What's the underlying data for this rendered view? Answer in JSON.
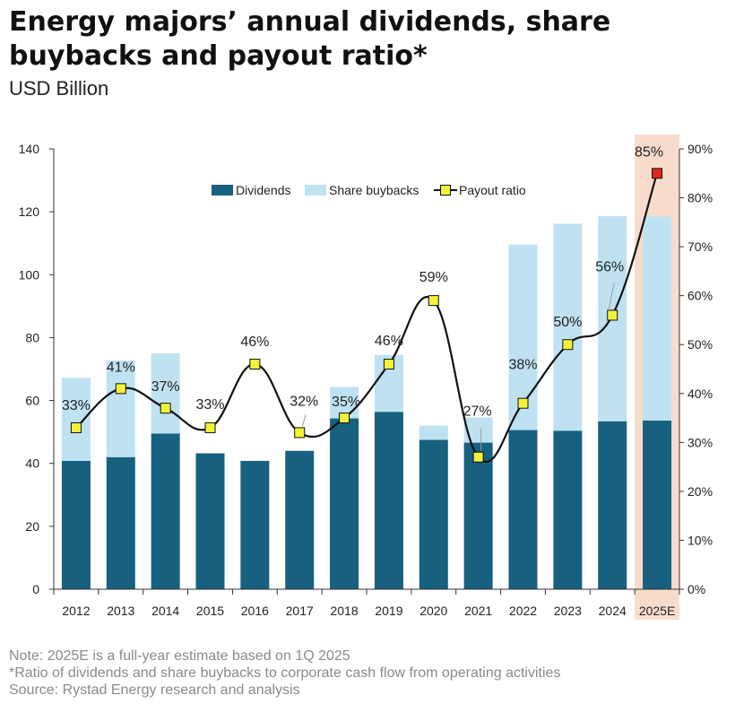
{
  "header": {
    "title": "Energy majors’ annual dividends, share buybacks and payout ratio*",
    "subtitle": "USD Billion"
  },
  "notes": [
    "Note: 2025E is a full-year estimate based on 1Q 2025",
    "*Ratio of dividends and share buybacks to corporate cash flow from operating activities",
    "Source: Rystad Energy research and analysis"
  ],
  "colors": {
    "dividends": "#17607f",
    "buybacks": "#bfe2f2",
    "line": "#111111",
    "marker": "#f2f23a",
    "marker_highlight": "#e0261c",
    "highlight_band": "#f8dccb"
  },
  "chart_data": {
    "type": "bar",
    "stacked": true,
    "categories": [
      "2012",
      "2013",
      "2014",
      "2015",
      "2016",
      "2017",
      "2018",
      "2019",
      "2020",
      "2021",
      "2022",
      "2023",
      "2024",
      "2025E"
    ],
    "series": [
      {
        "name": "Dividends",
        "axis": "left",
        "values": [
          40.8,
          42.0,
          49.5,
          43.2,
          40.8,
          44.0,
          54.3,
          56.4,
          47.5,
          46.6,
          50.6,
          50.4,
          53.4,
          53.6
        ]
      },
      {
        "name": "Share buybacks",
        "axis": "left",
        "values": [
          26.4,
          30.7,
          25.5,
          0,
          0,
          0,
          10.0,
          18.1,
          4.5,
          8.0,
          59.0,
          65.8,
          65.2,
          64.9
        ]
      },
      {
        "name": "Payout ratio",
        "type": "line",
        "axis": "right",
        "values": [
          33,
          41,
          37,
          33,
          46,
          32,
          35,
          46,
          59,
          27,
          38,
          50,
          56,
          85
        ],
        "labels": [
          "33%",
          "41%",
          "37%",
          "33%",
          "46%",
          "32%",
          "35%",
          "46%",
          "59%",
          "27%",
          "38%",
          "50%",
          "56%",
          "85%"
        ]
      }
    ],
    "ylim": [
      0,
      140
    ],
    "yticks": [
      "0",
      "20",
      "40",
      "60",
      "80",
      "100",
      "120",
      "140"
    ],
    "y2lim": [
      0,
      90
    ],
    "y2ticks": [
      "0%",
      "10%",
      "20%",
      "30%",
      "40%",
      "50%",
      "60%",
      "70%",
      "80%",
      "90%"
    ],
    "highlight_category": "2025E",
    "legend_position": "top-center",
    "grid": false
  }
}
